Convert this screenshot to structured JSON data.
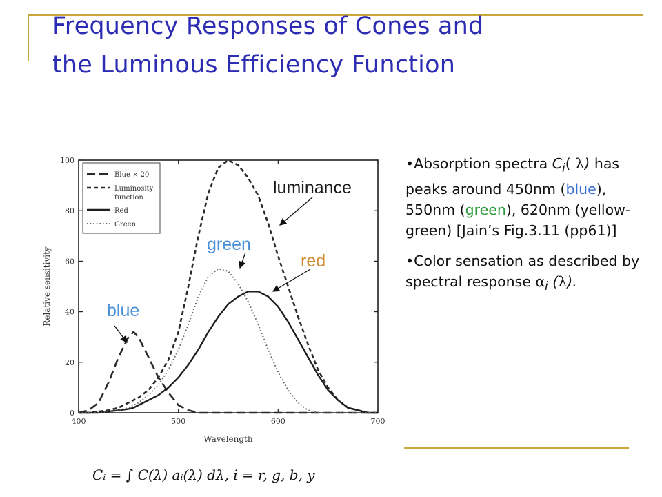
{
  "title": {
    "line1": "Frequency Responses of Cones and",
    "line2": "the Luminous Efficiency Function"
  },
  "colors": {
    "title": "#2d2db3",
    "rule": "#c9a83a",
    "annotation_blue": "#4a90d9",
    "annotation_red": "#d08a30",
    "text_blue": "#3b6fd4",
    "text_green": "#2c9a3a"
  },
  "annotations": {
    "luminance": "luminance",
    "green": "green",
    "red": "red",
    "blue": "blue"
  },
  "bullets": {
    "b1": {
      "dot": "•",
      "part1": "Absorption spectra",
      "c": "C",
      "sub_i": "i",
      "paren_open": "( ",
      "lambda": "λ",
      "paren_close": ")",
      "part2": " has peaks around 450nm (",
      "blue_word": "blue",
      "part3": "), 550nm (",
      "green_word": "green",
      "part4": "), 620nm (yellow-green) [Jain’s Fig.3.11 (pp61)]"
    },
    "b2": {
      "dot": "•",
      "part1": "Color sensation as described by spectral response α",
      "sub_i": "i",
      "part2": " (",
      "lambda": "λ",
      "part3": ")."
    }
  },
  "formula": "Cᵢ = ∫ C(λ) aᵢ(λ) dλ,   i = r, g, b, y",
  "chart_data": {
    "type": "line",
    "xlabel": "Wavelength",
    "ylabel": "Relative sensitivity",
    "xlim": [
      400,
      700
    ],
    "ylim": [
      0,
      100
    ],
    "x_ticks": [
      "400",
      "500",
      "600",
      "700"
    ],
    "y_ticks": [
      "0",
      "20",
      "40",
      "60",
      "80",
      "100"
    ],
    "legend": {
      "placement": "top-left",
      "entries": [
        "Blue × 20",
        "Luminosity function",
        "Red",
        "Green"
      ]
    },
    "x": [
      400,
      410,
      420,
      430,
      440,
      450,
      455,
      460,
      470,
      480,
      490,
      500,
      510,
      520,
      530,
      540,
      550,
      560,
      570,
      580,
      590,
      600,
      610,
      620,
      630,
      640,
      650,
      660,
      670,
      680,
      690,
      700
    ],
    "series": [
      {
        "name": "Blue × 20",
        "style": "long-dash",
        "values": [
          0,
          1,
          4,
          12,
          22,
          30,
          32,
          30,
          22,
          14,
          8,
          3,
          1,
          0,
          0,
          0,
          0,
          0,
          0,
          0,
          0,
          0,
          0,
          0,
          0,
          0,
          0,
          0,
          0,
          0,
          0,
          0
        ]
      },
      {
        "name": "Luminosity function",
        "style": "short-dash",
        "values": [
          0,
          0,
          0.5,
          1,
          2,
          4,
          5,
          6,
          9,
          14,
          21,
          32,
          50,
          70,
          87,
          97,
          100,
          98,
          93,
          86,
          75,
          62,
          50,
          38,
          27,
          17,
          10,
          5,
          2,
          1,
          0,
          0
        ]
      },
      {
        "name": "Red",
        "style": "solid",
        "values": [
          0,
          0,
          0,
          0.5,
          1,
          1.5,
          2,
          3,
          5,
          7,
          10,
          14,
          19,
          25,
          32,
          38,
          43,
          46,
          48,
          48,
          46,
          42,
          36,
          29,
          22,
          15,
          9,
          5,
          2,
          1,
          0,
          0
        ]
      },
      {
        "name": "Green",
        "style": "dotted",
        "values": [
          0,
          0,
          0,
          0.5,
          1,
          2,
          3,
          4,
          7,
          11,
          17,
          25,
          35,
          46,
          54,
          57,
          56,
          51,
          44,
          35,
          25,
          16,
          9,
          4,
          1,
          0,
          0,
          0,
          0,
          0,
          0,
          0
        ]
      }
    ]
  }
}
